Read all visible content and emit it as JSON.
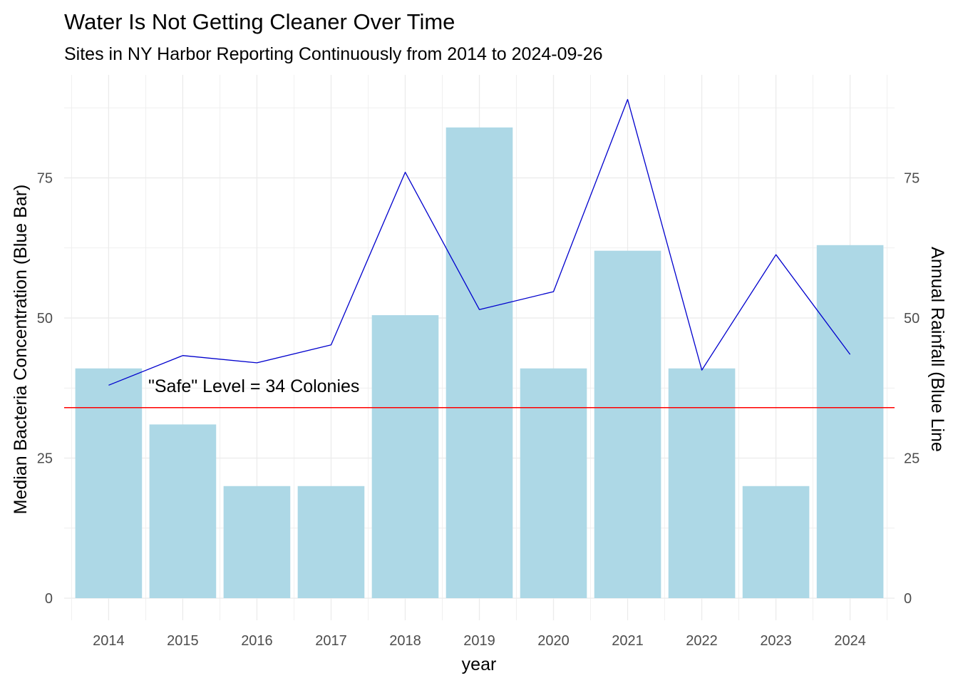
{
  "chart_data": {
    "type": "bar",
    "title": "Water Is Not Getting Cleaner Over Time",
    "subtitle": "Sites in NY Harbor Reporting Continuously from 2014 to 2024-09-26",
    "xlabel": "year",
    "ylabel": "Median Bacteria Concentration (Blue Bar)",
    "y2label": "Annual Rainfall (Blue Line",
    "categories": [
      "2014",
      "2015",
      "2016",
      "2017",
      "2018",
      "2019",
      "2020",
      "2021",
      "2022",
      "2023",
      "2024"
    ],
    "series": [
      {
        "type": "bar",
        "values": [
          41,
          31,
          20,
          20,
          50.5,
          84,
          41,
          62,
          41,
          20,
          63
        ],
        "color": "#ADD8E6"
      },
      {
        "type": "line",
        "values": [
          38,
          43.3,
          42,
          45.2,
          76,
          51.5,
          54.7,
          89,
          40.7,
          61.3,
          43.5
        ],
        "color": "#0000CD"
      }
    ],
    "ylim": [
      0,
      90
    ],
    "yticks": [
      0,
      25,
      50,
      75
    ],
    "y2ticks": [
      0,
      25,
      50,
      75
    ],
    "reference_line": {
      "value": 34,
      "label": "\"Safe\" Level = 34 Colonies",
      "color": "#FF0000"
    },
    "grid": true,
    "legend": "none"
  }
}
